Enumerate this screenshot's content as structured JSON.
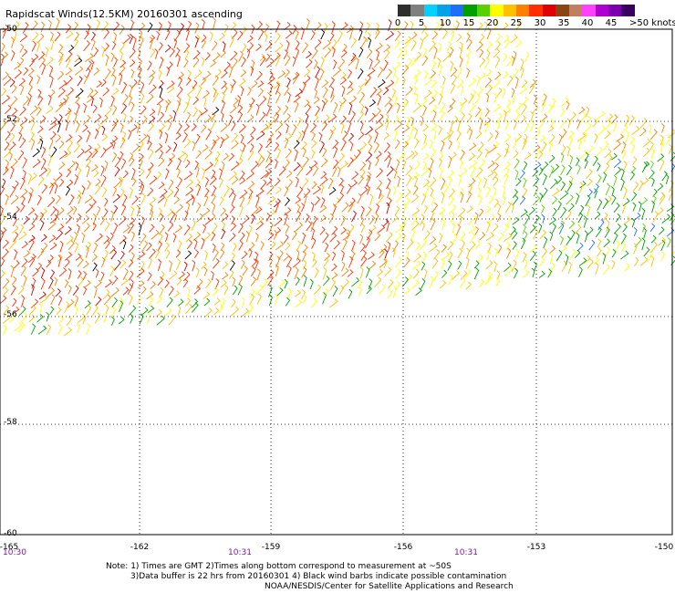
{
  "title": "Rapidscat Winds(12.5KM) 20160301 ascending",
  "colorbar": {
    "colors": [
      "#2e2e2e",
      "#7f7f7f",
      "#00d2ff",
      "#00a2e8",
      "#1f6fff",
      "#00a000",
      "#5ad000",
      "#ffff00",
      "#ffc000",
      "#ff7f00",
      "#ff3000",
      "#e00000",
      "#8b4513",
      "#c08060",
      "#ff40ff",
      "#b000d0",
      "#7a00b0",
      "#3a0060"
    ],
    "labels": [
      {
        "text": "0",
        "pos": 0.0
      },
      {
        "text": "5",
        "pos": 0.1
      },
      {
        "text": "10",
        "pos": 0.2
      },
      {
        "text": "15",
        "pos": 0.3
      },
      {
        "text": "20",
        "pos": 0.4
      },
      {
        "text": "25",
        "pos": 0.5
      },
      {
        "text": "30",
        "pos": 0.6
      },
      {
        "text": "35",
        "pos": 0.7
      },
      {
        "text": "40",
        "pos": 0.8
      },
      {
        "text": "45",
        "pos": 0.9
      }
    ],
    "units": ">50 knots"
  },
  "map": {
    "lon_min": -165,
    "lon_max": -150,
    "lat_min": -60,
    "lat_max": -50,
    "lat_labels": [
      "-50",
      "-52",
      "-54",
      "-56",
      "-58",
      "-60"
    ],
    "lon_labels": [
      "-165",
      "-162",
      "-159",
      "-156",
      "-153",
      "-150"
    ],
    "times": [
      "10:30",
      "10:31",
      "10:31"
    ],
    "time_lons": [
      -164.8,
      -158.9,
      -153.9
    ]
  },
  "notes": [
    "Note: 1) Times are GMT 2)Times along bottom correspond to measurement at ~50S",
    "3)Data buffer is 22 hrs from 20160301 4) Black wind barbs indicate possible contamination",
    "NOAA/NESDIS/Center for Satellite Applications and Research"
  ]
}
